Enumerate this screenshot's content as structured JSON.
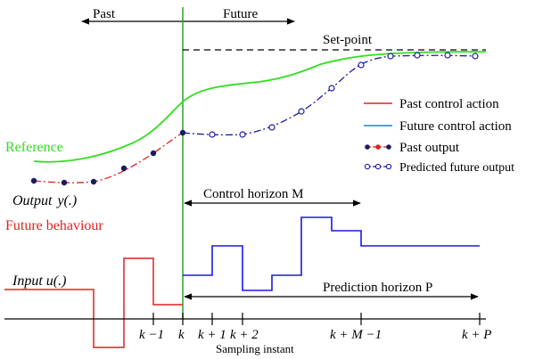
{
  "labels": {
    "past": "Past",
    "future": "Future",
    "set_point": "Set-point",
    "reference": "Reference",
    "output_text": "Output",
    "output_symbol": "y(.)",
    "future_behaviour": "Future behaviour",
    "input_text": "Input",
    "input_symbol": "u(.)",
    "control_horizon": "Control horizon M",
    "prediction_horizon": "Prediction horizon P",
    "sampling_instant": "Sampling instant"
  },
  "ticks": {
    "k_minus_1": "k −1",
    "k": "k",
    "k_plus_1": "k + 1",
    "k_plus_2": "k + 2",
    "k_plus_M_minus_1": "k + M −1",
    "k_plus_P": "k + P"
  },
  "legend": [
    {
      "label": "Past control action",
      "color": "#e02020",
      "style": "line"
    },
    {
      "label": "Future control action",
      "color": "#1f7fd6",
      "style": "line"
    },
    {
      "label": "Past output",
      "color": "#e02020",
      "style": "filled-dots"
    },
    {
      "label": "Predicted future output",
      "color": "#1a1aa0",
      "style": "open-dots"
    }
  ],
  "colors": {
    "reference": "#33dd22",
    "past": "#e02020",
    "future_input": "#1a1ae0",
    "predicted": "#1a1aa0",
    "now_line": "#2aa02a",
    "axes": "#000000"
  }
}
